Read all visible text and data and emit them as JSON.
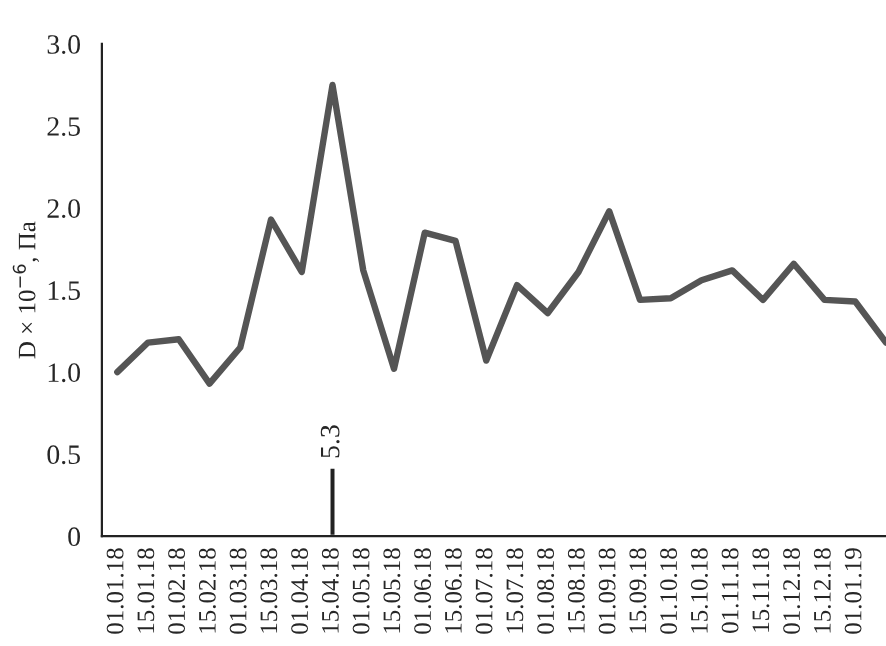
{
  "chart_data": {
    "type": "line",
    "ylabel": "D × 10$^{−6}$, Па",
    "categories": [
      "01.01.18",
      "15.01.18",
      "01.02.18",
      "15.02.18",
      "01.03.18",
      "15.03.18",
      "01.04.18",
      "15.04.18",
      "01.05.18",
      "15.05.18",
      "01.06.18",
      "15.06.18",
      "01.07.18",
      "15.07.18",
      "01.08.18",
      "15.08.18",
      "01.09.18",
      "15.09.18",
      "01.10.18",
      "15.10.18",
      "01.11.18",
      "15.11.18",
      "01.12.18",
      "15.12.18",
      "01.01.19",
      null
    ],
    "series": [
      {
        "color": "#555555",
        "values": [
          1.0,
          1.18,
          1.2,
          0.93,
          1.15,
          1.93,
          1.61,
          2.75,
          1.62,
          1.02,
          1.85,
          1.8,
          1.07,
          1.53,
          1.36,
          1.61,
          1.98,
          1.44,
          1.45,
          1.56,
          1.62,
          1.44,
          1.66,
          1.44,
          1.43,
          1.18
        ]
      },
      {
        "type": "bar",
        "color": "#222222",
        "values": [
          null,
          null,
          null,
          null,
          null,
          null,
          null,
          0.42,
          null,
          null,
          null,
          null,
          null,
          null,
          null,
          null,
          null,
          null,
          null,
          null,
          null,
          null,
          null,
          null,
          null,
          null
        ]
      }
    ],
    "annotations": [
      "5.3"
    ],
    "ylim": [
      0,
      3.0
    ],
    "yticks": [
      0,
      0.5,
      {
        "value": 1,
        "label": "1.0"
      },
      1.5,
      {
        "value": 2,
        "label": "2.0"
      },
      2.5,
      {
        "value": 3,
        "label": "3.0"
      }
    ],
    "grid": false,
    "legend": false,
    "marker": "none",
    "line_style": "solid"
  }
}
